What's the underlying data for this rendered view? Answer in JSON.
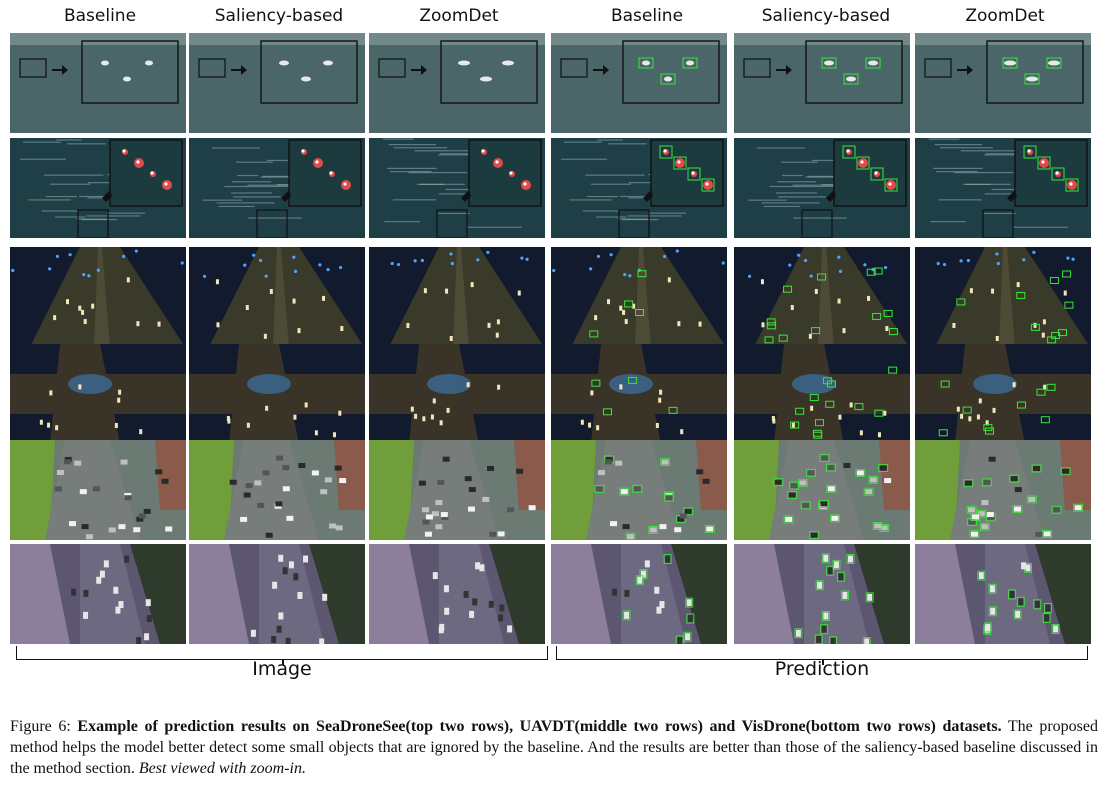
{
  "column_headers": [
    "Baseline",
    "Saliency-based",
    "ZoomDet",
    "Baseline",
    "Saliency-based",
    "ZoomDet"
  ],
  "group_labels": {
    "image": "Image",
    "prediction": "Prediction"
  },
  "rows": [
    {
      "scene": "sea-far"
    },
    {
      "scene": "sea-near"
    },
    {
      "scene": "night-road"
    },
    {
      "scene": "night-intersection"
    },
    {
      "scene": "day-street"
    },
    {
      "scene": "dusk-road"
    }
  ],
  "caption": {
    "prefix": "Figure 6: ",
    "bold": "Example of prediction results on SeaDroneSee(top two rows), UAVDT(middle two rows) and VisDrone(bottom two rows) datasets",
    "period": ".",
    "body": " The proposed method helps the model better detect some small objects that are ignored by the baseline. And the results are better than those of the saliency-based baseline discussed in the method section. ",
    "italic": "Best viewed with zoom-in."
  },
  "colors": {
    "detection_box": "#39e639",
    "sea_far": "#4a6668",
    "sea_near": "#1f3f47",
    "night": "#121a2e",
    "day_street": "#6b7a72",
    "dusk_road": "#5d5670"
  }
}
